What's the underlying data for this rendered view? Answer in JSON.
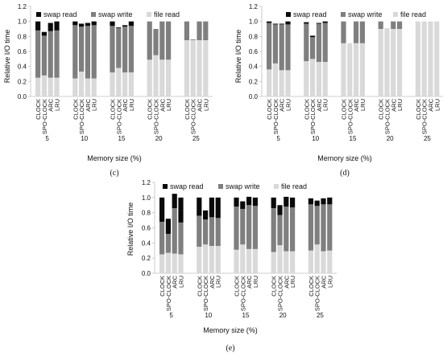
{
  "legend": {
    "swap_read": "swap read",
    "swap_write": "swap write",
    "file_read": "file read"
  },
  "colors": {
    "swap_read": "#0a0a0a",
    "swap_write": "#7f7f7f",
    "file_read": "#d9d9d9",
    "axis": "#bfbfbf"
  },
  "policies": [
    "CLOCK",
    "SPO-CLOCK",
    "ARC",
    "LRU"
  ],
  "memory_sizes": [
    "5",
    "10",
    "15",
    "20",
    "25"
  ],
  "chart_data": [
    {
      "type": "bar",
      "stacked": true,
      "title": "",
      "caption": "(c)",
      "xlabel": "Memory size (%)",
      "ylabel": "Relative I/O time",
      "ylim": [
        0,
        1.2
      ],
      "yticks": [
        "0.0",
        "0.2",
        "0.4",
        "0.6",
        "0.8",
        "1.0",
        "1.2"
      ],
      "groups": [
        "5",
        "10",
        "15",
        "20",
        "25"
      ],
      "categories": [
        "CLOCK",
        "SPO-CLOCK",
        "ARC",
        "LRU"
      ],
      "legend_position": "top",
      "series": [
        {
          "name": "file read",
          "values": [
            [
              0.25,
              0.28,
              0.25,
              0.25
            ],
            [
              0.24,
              0.33,
              0.24,
              0.24
            ],
            [
              0.32,
              0.38,
              0.32,
              0.32
            ],
            [
              0.49,
              0.55,
              0.49,
              0.49
            ],
            [
              0.75,
              0.75,
              0.75,
              0.75
            ]
          ]
        },
        {
          "name": "swap write",
          "values": [
            [
              0.63,
              0.53,
              0.62,
              0.63
            ],
            [
              0.71,
              0.6,
              0.7,
              0.71
            ],
            [
              0.62,
              0.53,
              0.61,
              0.62
            ],
            [
              0.51,
              0.35,
              0.51,
              0.51
            ],
            [
              0.25,
              0.01,
              0.25,
              0.25
            ]
          ]
        },
        {
          "name": "swap read",
          "values": [
            [
              0.12,
              0.05,
              0.11,
              0.12
            ],
            [
              0.05,
              0.04,
              0.04,
              0.05
            ],
            [
              0.06,
              0.01,
              0.02,
              0.06
            ],
            [
              0.0,
              0.0,
              0.0,
              0.0
            ],
            [
              0.0,
              0.0,
              0.0,
              0.0
            ]
          ]
        }
      ]
    },
    {
      "type": "bar",
      "stacked": true,
      "title": "",
      "caption": "(d)",
      "xlabel": "Memory size (%)",
      "ylabel": "Relative I/O time",
      "ylim": [
        0,
        1.2
      ],
      "yticks": [
        "0.0",
        "0.2",
        "0.4",
        "0.6",
        "0.8",
        "1.0",
        "1.2"
      ],
      "groups": [
        "5",
        "10",
        "15",
        "20",
        "25"
      ],
      "categories": [
        "CLOCK",
        "SPO-CLOCK",
        "ARC",
        "LRU"
      ],
      "legend_position": "top",
      "series": [
        {
          "name": "file read",
          "values": [
            [
              0.36,
              0.44,
              0.35,
              0.35
            ],
            [
              0.47,
              0.5,
              0.46,
              0.46
            ],
            [
              0.71,
              0.71,
              0.71,
              0.71
            ],
            [
              0.9,
              0.91,
              0.9,
              0.9
            ],
            [
              1.0,
              1.0,
              1.0,
              1.0
            ]
          ]
        },
        {
          "name": "swap write",
          "values": [
            [
              0.62,
              0.52,
              0.61,
              0.61
            ],
            [
              0.5,
              0.29,
              0.51,
              0.52
            ],
            [
              0.29,
              0.0,
              0.29,
              0.29
            ],
            [
              0.1,
              0.0,
              0.1,
              0.1
            ],
            [
              0.0,
              0.0,
              0.0,
              0.0
            ]
          ]
        },
        {
          "name": "swap read",
          "values": [
            [
              0.02,
              0.01,
              0.01,
              0.04
            ],
            [
              0.02,
              0.02,
              0.01,
              0.02
            ],
            [
              0.0,
              0.0,
              0.0,
              0.0
            ],
            [
              0.0,
              0.0,
              0.0,
              0.0
            ],
            [
              0.0,
              0.0,
              0.0,
              0.0
            ]
          ]
        }
      ]
    },
    {
      "type": "bar",
      "stacked": true,
      "title": "",
      "caption": "(e)",
      "xlabel": "Memory size (%)",
      "ylabel": "Relative I/O time",
      "ylim": [
        0,
        1.2
      ],
      "yticks": [
        "0.0",
        "0.2",
        "0.4",
        "0.6",
        "0.8",
        "1.0",
        "1.2"
      ],
      "groups": [
        "5",
        "10",
        "15",
        "20",
        "25"
      ],
      "categories": [
        "CLOCK",
        "SPO-CLOCK",
        "ARC",
        "LRU"
      ],
      "legend_position": "top",
      "series": [
        {
          "name": "file read",
          "values": [
            [
              0.25,
              0.27,
              0.26,
              0.25
            ],
            [
              0.35,
              0.38,
              0.36,
              0.36
            ],
            [
              0.31,
              0.38,
              0.32,
              0.32
            ],
            [
              0.28,
              0.37,
              0.29,
              0.29
            ],
            [
              0.3,
              0.38,
              0.29,
              0.3
            ]
          ]
        },
        {
          "name": "swap write",
          "values": [
            [
              0.43,
              0.25,
              0.6,
              0.42
            ],
            [
              0.41,
              0.33,
              0.38,
              0.37
            ],
            [
              0.57,
              0.47,
              0.58,
              0.57
            ],
            [
              0.58,
              0.4,
              0.59,
              0.58
            ],
            [
              0.61,
              0.51,
              0.62,
              0.61
            ]
          ]
        },
        {
          "name": "swap read",
          "values": [
            [
              0.32,
              0.2,
              0.19,
              0.33
            ],
            [
              0.24,
              0.12,
              0.26,
              0.27
            ],
            [
              0.12,
              0.1,
              0.11,
              0.11
            ],
            [
              0.14,
              0.13,
              0.13,
              0.13
            ],
            [
              0.08,
              0.07,
              0.08,
              0.09
            ]
          ]
        }
      ]
    }
  ]
}
